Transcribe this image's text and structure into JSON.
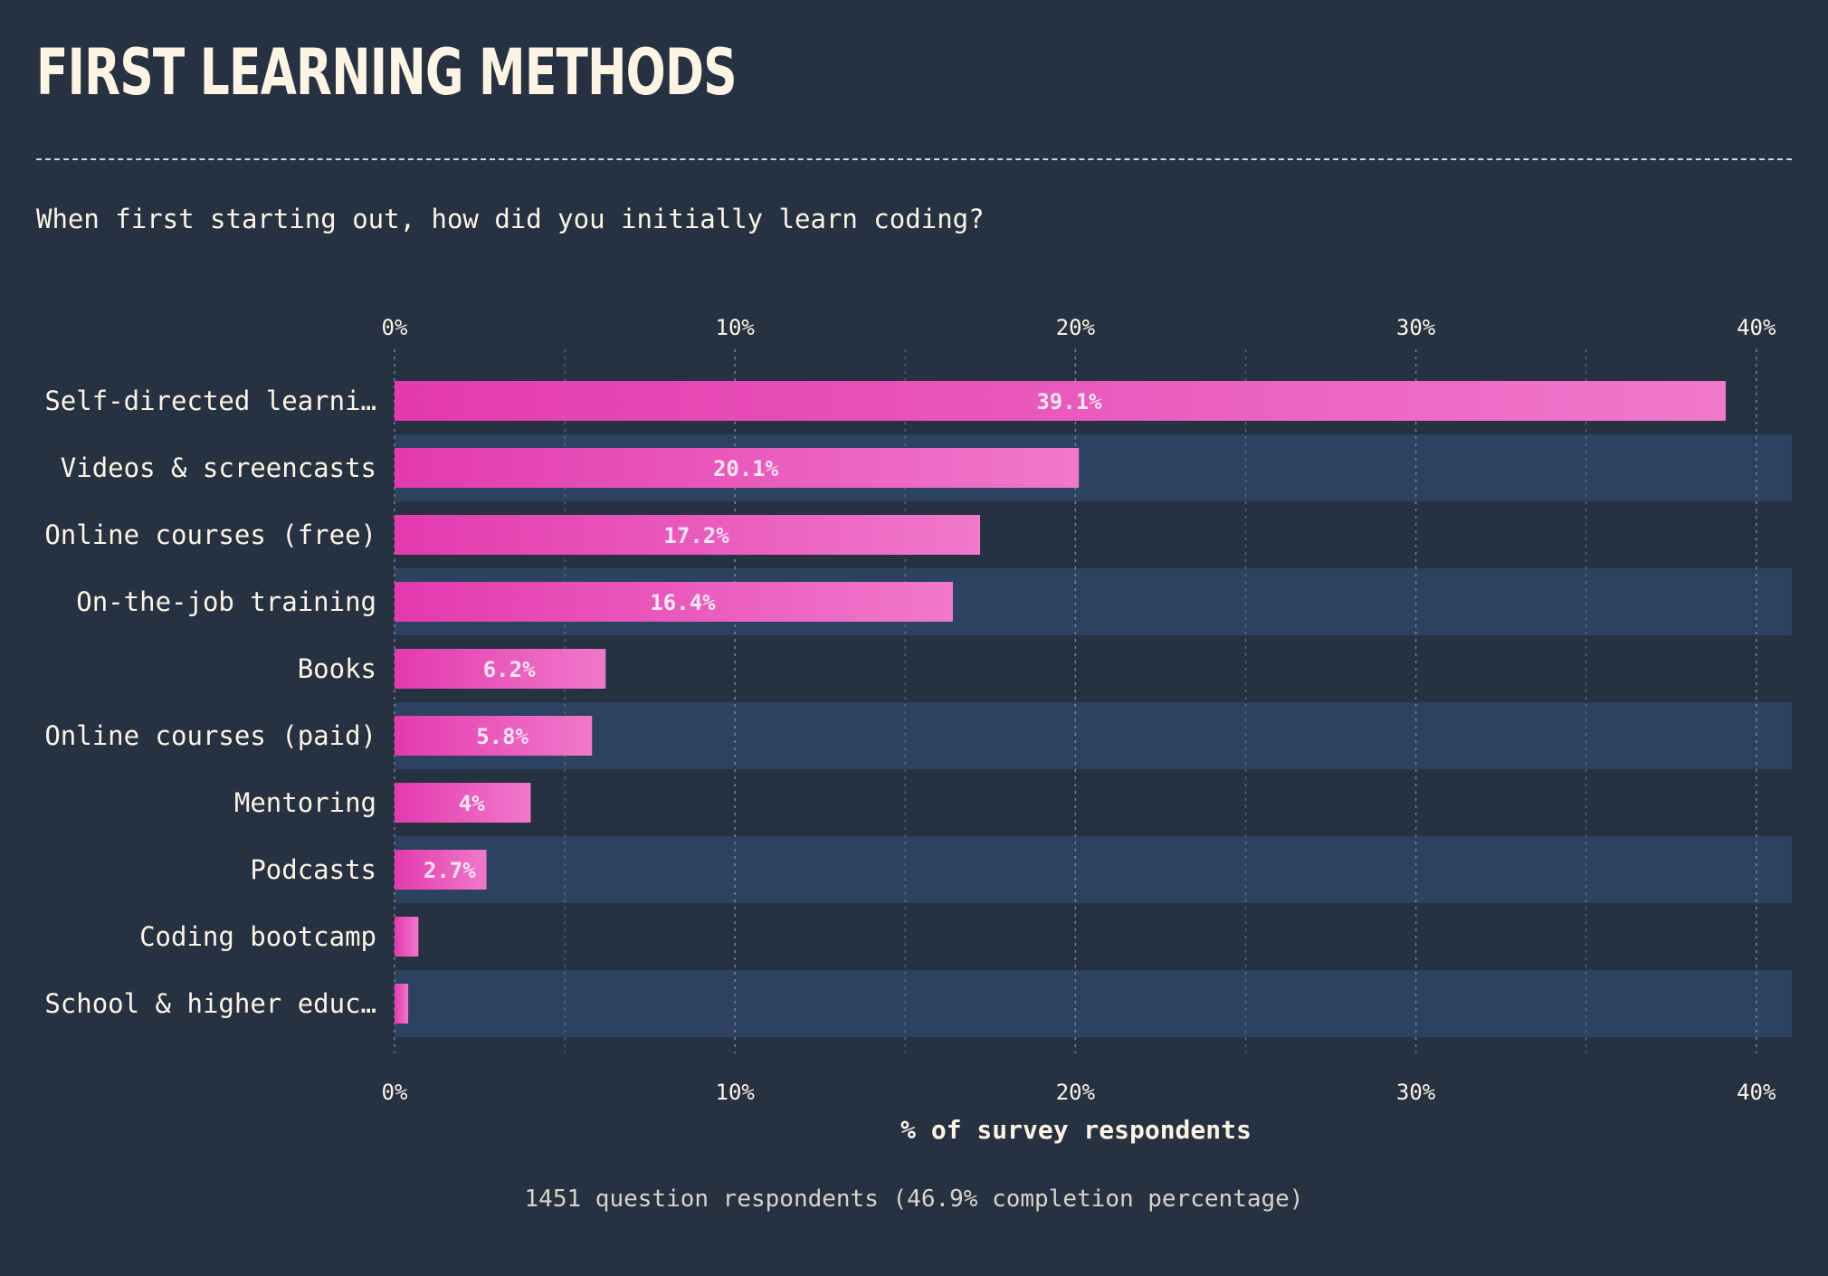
{
  "title": "FIRST LEARNING METHODS",
  "question": "When first starting out, how did you initially learn coding?",
  "footer": "1451 question respondents (46.9% completion percentage)",
  "colors": {
    "background": "#263242",
    "band": "#2d4261",
    "bar_start": "#e33aae",
    "bar_end": "#f178cb",
    "text": "#fdf4e4",
    "grid": "#8c96a3"
  },
  "chart_data": {
    "type": "bar",
    "orientation": "horizontal",
    "categories": [
      "Self-directed learni…",
      "Videos & screencasts",
      "Online courses (free)",
      "On-the-job training",
      "Books",
      "Online courses (paid)",
      "Mentoring",
      "Podcasts",
      "Coding bootcamp",
      "School & higher educ…"
    ],
    "values": [
      39.1,
      20.1,
      17.2,
      16.4,
      6.2,
      5.8,
      4,
      2.7,
      0.7,
      0.4
    ],
    "data_labels": [
      "39.1%",
      "20.1%",
      "17.2%",
      "16.4%",
      "6.2%",
      "5.8%",
      "4%",
      "2.7%",
      "",
      ""
    ],
    "xlabel": "% of survey respondents",
    "xlim": [
      0,
      41
    ],
    "xticks": [
      0,
      10,
      20,
      30,
      40
    ],
    "xtick_labels": [
      "0%",
      "10%",
      "20%",
      "30%",
      "40%"
    ],
    "grid": true,
    "axis_position": "top and bottom"
  }
}
